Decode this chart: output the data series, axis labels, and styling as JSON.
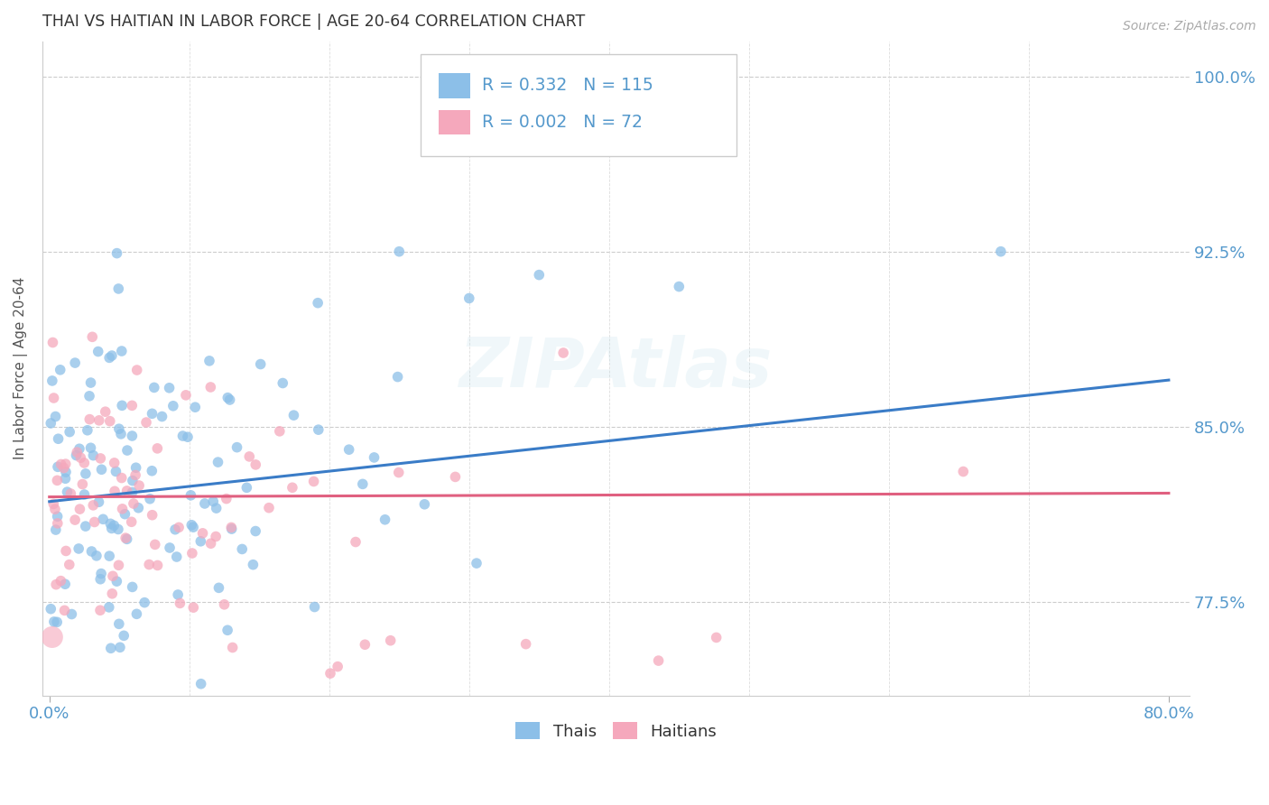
{
  "title": "THAI VS HAITIAN IN LABOR FORCE | AGE 20-64 CORRELATION CHART",
  "source": "Source: ZipAtlas.com",
  "ylabel": "In Labor Force | Age 20-64",
  "xlim": [
    -0.005,
    0.815
  ],
  "ylim": [
    0.735,
    1.015
  ],
  "ytick_labels": [
    "77.5%",
    "85.0%",
    "92.5%",
    "100.0%"
  ],
  "ytick_vals": [
    0.775,
    0.85,
    0.925,
    1.0
  ],
  "xtick_labels": [
    "0.0%",
    "80.0%"
  ],
  "xtick_vals": [
    0.0,
    0.8
  ],
  "thai_color": "#8cbfe8",
  "haitian_color": "#f5a8bc",
  "thai_line_color": "#3a7cc7",
  "haitian_line_color": "#e06080",
  "legend_thai_R": "0.332",
  "legend_thai_N": "115",
  "legend_haitian_R": "0.002",
  "legend_haitian_N": "72",
  "background_color": "#ffffff",
  "title_color": "#333333",
  "axis_label_color": "#555555",
  "tick_color": "#5599cc",
  "grid_color": "#cccccc",
  "thai_intercept": 0.818,
  "thai_slope": 0.065,
  "haitian_intercept": 0.82,
  "haitian_slope": 0.002
}
